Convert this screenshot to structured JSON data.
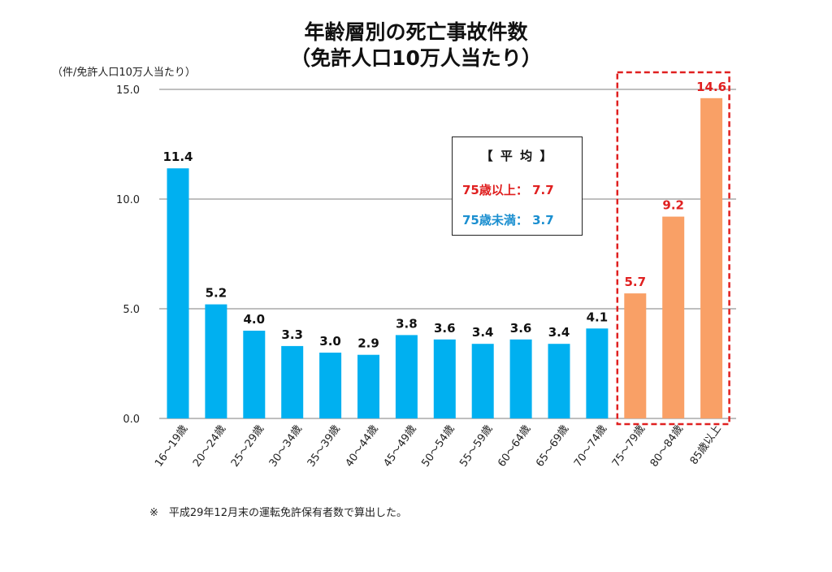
{
  "title_line1": "年齢層別の死亡事故件数",
  "title_line2": "（免許人口10万人当たり）",
  "chart_data": {
    "type": "bar",
    "title": "年齢層別の死亡事故件数（免許人口10万人当たり）",
    "ylabel": "（件/免許人口10万人当たり）",
    "xlabel": "",
    "ylim": [
      0,
      15
    ],
    "yticks": [
      0,
      5,
      10,
      15
    ],
    "ytick_labels": [
      "0.0",
      "5.0",
      "10.0",
      "15.0"
    ],
    "grid": true,
    "categories": [
      "16～19歳",
      "20～24歳",
      "25～29歳",
      "30～34歳",
      "35～39歳",
      "40～44歳",
      "45～49歳",
      "50～54歳",
      "55～59歳",
      "60～64歳",
      "65～69歳",
      "70～74歳",
      "75～79歳",
      "80～84歳",
      "85歳以上"
    ],
    "values": [
      11.4,
      5.2,
      4.0,
      3.3,
      3.0,
      2.9,
      3.8,
      3.6,
      3.4,
      3.6,
      3.4,
      4.1,
      5.7,
      9.2,
      14.6
    ],
    "value_labels": [
      "11.4",
      "5.2",
      "4.0",
      "3.3",
      "3.0",
      "2.9",
      "3.8",
      "3.6",
      "3.4",
      "3.6",
      "3.4",
      "4.1",
      "5.7",
      "9.2",
      "14.6"
    ],
    "groups": [
      "under75",
      "under75",
      "under75",
      "under75",
      "under75",
      "under75",
      "under75",
      "under75",
      "under75",
      "under75",
      "under75",
      "under75",
      "75plus",
      "75plus",
      "75plus"
    ],
    "colors": {
      "under75_bar": "#00b0f0",
      "75plus_bar": "#f9a066",
      "under75_label": "#111111",
      "75plus_label": "#e02020",
      "highlight_border": "#e02020",
      "grid": "#7f7f7f"
    },
    "highlight": "75～79歳 – 85歳以上",
    "legend": {
      "title": "【 平 均 】",
      "rows": [
        {
          "label": "75歳以上：",
          "value": "7.7",
          "color": "#e02020"
        },
        {
          "label": "75歳未満：",
          "value": "3.7",
          "color": "#1b8fd0"
        }
      ]
    }
  },
  "footnote": "※　平成29年12月末の運転免許保有者数で算出した。"
}
